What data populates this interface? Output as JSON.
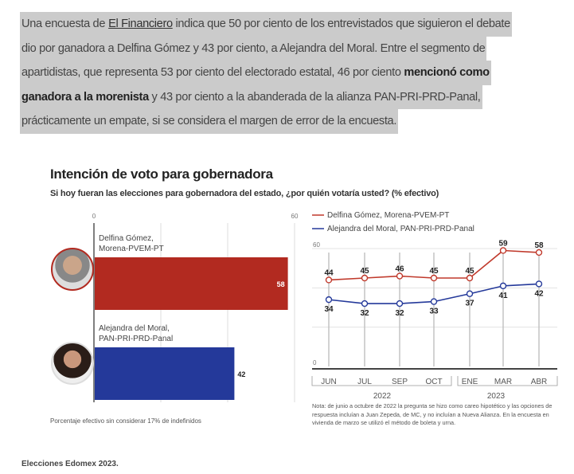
{
  "article": {
    "lines": [
      {
        "pre": "Una encuesta de",
        "link": "El Financiero",
        "post": " indica que 50 por ciento de los entrevistados que siguieron el debate"
      },
      {
        "text": "dio por ganadora a Delfina Gómez y 43 por ciento, a Alejandra del Moral. Entre el segmento de"
      },
      {
        "text": "apartidistas, que representa 53 por ciento del electorado estatal, 46 por ciento ",
        "bold": "mencionó como"
      },
      {
        "bold": "ganadora a la morenista",
        "text": " y 43 por ciento a la abanderada de la alianza PAN-PRI-PRD-Panal,"
      },
      {
        "text": "prácticamente un empate, si se considera el margen de error de la encuesta."
      }
    ],
    "caption": "Elecciones Edomex 2023."
  },
  "graphic": {
    "title": "Intención de voto para gobernadora",
    "subtitle": "Si hoy fueran las elecciones para gobernadora del estado, ¿por quién votaría usted? (% efectivo)",
    "footnote": "Porcentaje efectivo sin considerar 17% de indefinidos",
    "note": "Nota: de junio a octubre de 2022 la pregunta se hizo como careo hipotético y las opciones de respuesta incluían a Juan Zepeda, de MC, y no incluían a Nueva Alianza. En la encuesta en vivienda de marzo se utilizó el método de boleta y urna."
  },
  "chart_data": [
    {
      "type": "bar",
      "orientation": "horizontal",
      "xlim": [
        0,
        60
      ],
      "tick_labels": [
        "0",
        "60"
      ],
      "categories": [
        "Delfina Gómez, Morena-PVEM-PT",
        "Alejandra del Moral, PAN-PRI-PRD-Panal"
      ],
      "name_lines": [
        [
          "Delfina Gómez,",
          "Morena-PVEM-PT"
        ],
        [
          "Alejandra del Moral,",
          "PAN-PRI-PRD-Panal"
        ]
      ],
      "values": [
        58,
        42
      ],
      "colors": [
        "#b22a20",
        "#24399a"
      ]
    },
    {
      "type": "line",
      "ylim": [
        0,
        60
      ],
      "tick_labels": [
        "0",
        "60"
      ],
      "x": [
        "JUN",
        "JUL",
        "SEP",
        "OCT",
        "ENE",
        "MAR",
        "ABR"
      ],
      "years": [
        {
          "label": "2022"
        },
        {
          "label": "2023"
        }
      ],
      "series": [
        {
          "name": "Delfina Gómez, Morena-PVEM-PT",
          "color": "#c0392b",
          "values": [
            44,
            45,
            46,
            45,
            45,
            59,
            58
          ]
        },
        {
          "name": "Alejandra del Moral, PAN-PRI-PRD-Panal",
          "color": "#24399a",
          "values": [
            34,
            32,
            32,
            33,
            37,
            41,
            42
          ]
        }
      ]
    }
  ]
}
